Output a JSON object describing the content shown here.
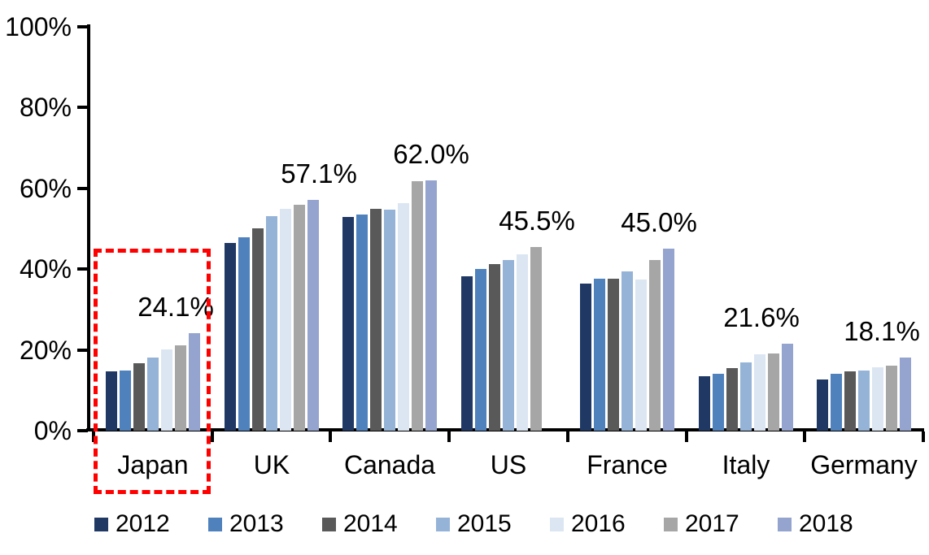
{
  "chart_data": {
    "type": "bar",
    "title": "",
    "xlabel": "",
    "ylabel": "",
    "categories": [
      "Japan",
      "UK",
      "Canada",
      "US",
      "France",
      "Italy",
      "Germany"
    ],
    "series": [
      {
        "name": "2012",
        "color": "#1F3864",
        "values": [
          14.7,
          46.5,
          53.0,
          38.3,
          36.5,
          13.4,
          12.6
        ]
      },
      {
        "name": "2013",
        "color": "#4F81BD",
        "values": [
          14.9,
          47.8,
          53.5,
          40.1,
          37.7,
          14.1,
          14.1
        ]
      },
      {
        "name": "2014",
        "color": "#595959",
        "values": [
          16.6,
          50.0,
          55.0,
          41.2,
          37.6,
          15.4,
          14.6
        ]
      },
      {
        "name": "2015",
        "color": "#95B3D7",
        "values": [
          18.2,
          53.2,
          54.7,
          42.3,
          39.4,
          16.9,
          14.9
        ]
      },
      {
        "name": "2016",
        "color": "#DCE6F2",
        "values": [
          20.1,
          54.9,
          56.3,
          43.7,
          37.4,
          19.0,
          15.6
        ]
      },
      {
        "name": "2017",
        "color": "#A6A6A6",
        "values": [
          21.2,
          55.9,
          61.7,
          45.5,
          42.3,
          19.2,
          16.0
        ]
      },
      {
        "name": "2018",
        "color": "#95A4CE",
        "values": [
          24.1,
          57.1,
          62.0,
          null,
          45.0,
          21.6,
          18.1
        ]
      }
    ],
    "data_labels": [
      "24.1%",
      "57.1%",
      "62.0%",
      "45.5%",
      "45.0%",
      "21.6%",
      "18.1%"
    ],
    "y_ticks": [
      "0%",
      "20%",
      "40%",
      "60%",
      "80%",
      "100%"
    ],
    "y_tick_values": [
      0,
      20,
      40,
      60,
      80,
      100
    ],
    "ylim": [
      0,
      100
    ],
    "grid": false,
    "legend_position": "bottom",
    "legend_entries": [
      "2012",
      "2013",
      "2014",
      "2015",
      "2016",
      "2017",
      "2018"
    ],
    "highlight": {
      "category": "Japan",
      "style": "dashed-box",
      "color": "#FF0000"
    },
    "layout_hints": {
      "label_dx": [
        101,
        131,
        124,
        108,
        112,
        92,
        95
      ]
    }
  },
  "colors": {
    "axis": "#000000",
    "background": "#FFFFFF",
    "highlight": "#FF0000"
  }
}
